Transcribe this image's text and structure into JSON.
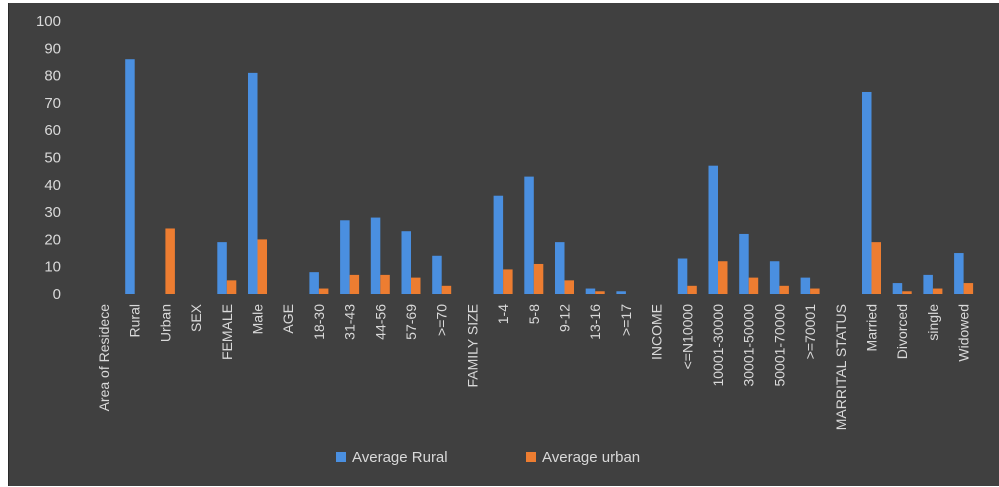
{
  "chart_data": {
    "type": "bar",
    "title": "",
    "xlabel": "",
    "ylabel": "",
    "ylim": [
      0,
      100
    ],
    "yticks": [
      "0",
      "10",
      "20",
      "30",
      "40",
      "50",
      "60",
      "70",
      "80",
      "90",
      "100"
    ],
    "grid": false,
    "legend_position": "bottom",
    "categories": [
      "Area of Residece",
      "Rural",
      "Urban",
      "SEX",
      "FEMALE",
      "Male",
      "AGE",
      "18-30",
      "31-43",
      "44-56",
      "57-69",
      ">=70",
      "FAMILY SIZE",
      "1-4",
      "5-8",
      "9-12",
      "13-16",
      ">=17",
      "INCOME",
      "<=N10000",
      "10001-30000",
      "30001-50000",
      "50001-70000",
      ">=70001",
      "MARRITAL STATUS",
      "Married",
      "Divorced",
      "single",
      "Widowed"
    ],
    "series": [
      {
        "name": "Average Rural",
        "color": "#4a8fe0",
        "values": [
          null,
          86,
          null,
          null,
          19,
          81,
          null,
          8,
          27,
          28,
          23,
          14,
          null,
          36,
          43,
          19,
          2,
          1,
          null,
          13,
          47,
          22,
          12,
          6,
          null,
          74,
          4,
          7,
          15
        ]
      },
      {
        "name": "Average urban",
        "color": "#ed7d31",
        "values": [
          null,
          null,
          24,
          null,
          5,
          20,
          null,
          2,
          7,
          7,
          6,
          3,
          null,
          9,
          11,
          5,
          1,
          null,
          null,
          3,
          12,
          6,
          3,
          2,
          null,
          19,
          1,
          2,
          4
        ]
      }
    ]
  }
}
